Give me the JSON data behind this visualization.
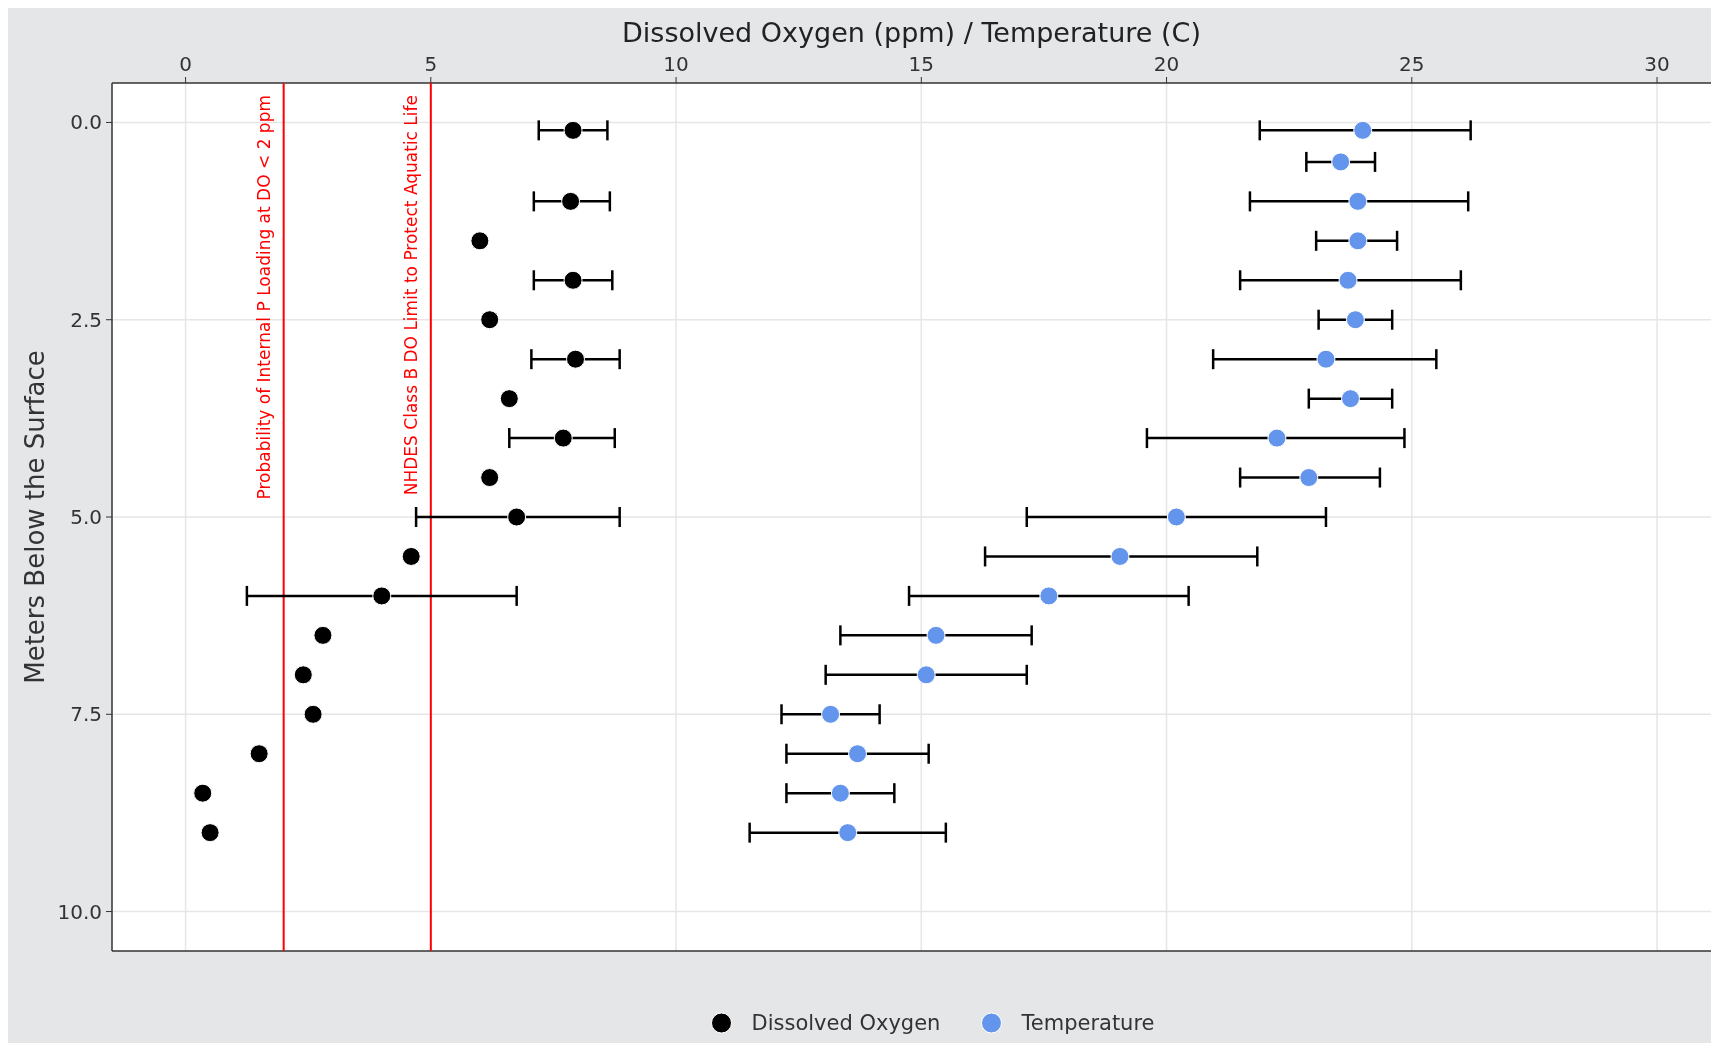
{
  "chart_data": {
    "type": "scatter",
    "xlabel": "Dissolved Oxygen (ppm) / Temperature (C)",
    "ylabel": "Meters Below the Surface",
    "xlim": [
      -1.5,
      31.1
    ],
    "xticks": [
      0,
      5,
      10,
      15,
      20,
      25,
      30
    ],
    "ylim": [
      10.5,
      -0.5
    ],
    "yticks": [
      {
        "value": 0,
        "label": "0.0"
      },
      {
        "value": 2.5,
        "label": "2.5"
      },
      {
        "value": 5,
        "label": "5.0"
      },
      {
        "value": 7.5,
        "label": "7.5"
      },
      {
        "value": 10,
        "label": "10.0"
      }
    ],
    "grid": true,
    "legend": "bottom",
    "marker": "circle",
    "ref_lines": [
      {
        "axis": "x",
        "value": 2,
        "label": "Probability of Internal P Loading at DO < 2 ppm",
        "color": "#ff0000"
      },
      {
        "axis": "x",
        "value": 5,
        "label": "NHDES Class B DO Limit to Protect Aquatic Life",
        "color": "#ff0000"
      }
    ],
    "series": [
      {
        "name": "Dissolved Oxygen",
        "color": "#000000",
        "x": [
          7.9,
          7.85,
          6.0,
          7.9,
          6.2,
          7.95,
          6.6,
          7.7,
          6.2,
          6.75,
          4.6,
          4.0,
          2.8,
          2.4,
          2.6,
          1.5,
          0.35,
          0.5
        ],
        "values": [
          0.1,
          1.0,
          1.5,
          2.0,
          2.5,
          3.0,
          3.5,
          4.0,
          4.5,
          5.0,
          5.5,
          6.0,
          6.5,
          7.0,
          7.5,
          8.0,
          8.5,
          9.0
        ],
        "xerrors": [
          [
            7.2,
            8.6
          ],
          [
            7.1,
            8.65
          ],
          null,
          [
            7.1,
            8.7
          ],
          null,
          [
            7.05,
            8.85
          ],
          null,
          [
            6.6,
            8.75
          ],
          null,
          [
            4.7,
            8.85
          ],
          null,
          [
            1.25,
            6.75
          ],
          null,
          null,
          null,
          null,
          null,
          null
        ]
      },
      {
        "name": "Temperature",
        "color": "#6495ed",
        "x": [
          24.0,
          23.55,
          23.9,
          23.9,
          23.7,
          23.85,
          23.25,
          23.75,
          22.25,
          22.9,
          20.2,
          19.05,
          17.6,
          15.3,
          15.1,
          13.15,
          13.7,
          13.35,
          13.5
        ],
        "values": [
          0.1,
          0.5,
          1.0,
          1.5,
          2.0,
          2.5,
          3.0,
          3.5,
          4.0,
          4.5,
          5.0,
          5.5,
          6.0,
          6.5,
          7.0,
          7.5,
          8.0,
          8.5,
          9.0
        ],
        "xerrors": [
          [
            21.9,
            26.2
          ],
          [
            22.85,
            24.25
          ],
          [
            21.7,
            26.15
          ],
          [
            23.05,
            24.7
          ],
          [
            21.5,
            26.0
          ],
          [
            23.1,
            24.6
          ],
          [
            20.95,
            25.5
          ],
          [
            22.9,
            24.6
          ],
          [
            19.6,
            24.85
          ],
          [
            21.5,
            24.35
          ],
          [
            17.15,
            23.25
          ],
          [
            16.3,
            21.85
          ],
          [
            14.75,
            20.45
          ],
          [
            13.35,
            17.25
          ],
          [
            13.05,
            17.15
          ],
          [
            12.15,
            14.15
          ],
          [
            12.25,
            15.15
          ],
          [
            12.25,
            14.45
          ],
          [
            11.5,
            15.5
          ]
        ]
      }
    ]
  }
}
